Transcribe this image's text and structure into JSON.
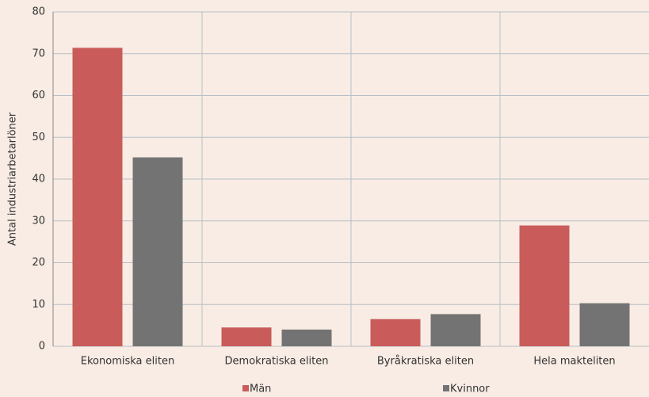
{
  "chart_data": {
    "type": "bar",
    "y_label": "Antal industriarbetarlöner",
    "categories": [
      "Ekonomiska eliten",
      "Demokratiska eliten",
      "Byråkratiska eliten",
      "Hela makteliten"
    ],
    "series": [
      {
        "name": "Män",
        "color": "#c95c5a",
        "values": [
          71.4,
          4.5,
          6.5,
          28.9
        ]
      },
      {
        "name": "Kvinnor",
        "color": "#737373",
        "values": [
          45.2,
          4.0,
          7.7,
          10.3
        ]
      }
    ],
    "ylim": [
      0,
      80
    ],
    "yticks": [
      0,
      10,
      20,
      30,
      40,
      50,
      60,
      70,
      80
    ],
    "grid": true,
    "legend": "bottom"
  }
}
